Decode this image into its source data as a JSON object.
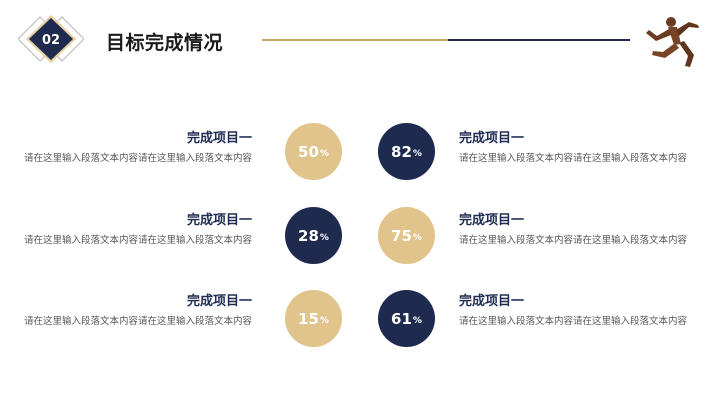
{
  "header": {
    "section_number": "02",
    "title": "目标完成情况"
  },
  "colors": {
    "navy": "#1e2a4e",
    "gold": "#e0c48c",
    "gold_line": "#c6a768"
  },
  "items": {
    "r1_left": {
      "title": "完成项目一",
      "desc": "请在这里输入段落文本内容请在这里输入段落文本内容",
      "value": "50",
      "unit": "%",
      "progress": 50
    },
    "r1_right": {
      "title": "完成项目一",
      "desc": "请在这里输入段落文本内容请在这里输入段落文本内容",
      "value": "82",
      "unit": "%",
      "progress": 82
    },
    "r2_left": {
      "title": "完成项目一",
      "desc": "请在这里输入段落文本内容请在这里输入段落文本内容",
      "value": "28",
      "unit": "%",
      "progress": 28
    },
    "r2_right": {
      "title": "完成项目一",
      "desc": "请在这里输入段落文本内容请在这里输入段落文本内容",
      "value": "75",
      "unit": "%",
      "progress": 75
    },
    "r3_left": {
      "title": "完成项目一",
      "desc": "请在这里输入段落文本内容请在这里输入段落文本内容",
      "value": "15",
      "unit": "%",
      "progress": 15
    },
    "r3_right": {
      "title": "完成项目一",
      "desc": "请在这里输入段落文本内容请在这里输入段落文本内容",
      "value": "61",
      "unit": "%",
      "progress": 61
    }
  }
}
